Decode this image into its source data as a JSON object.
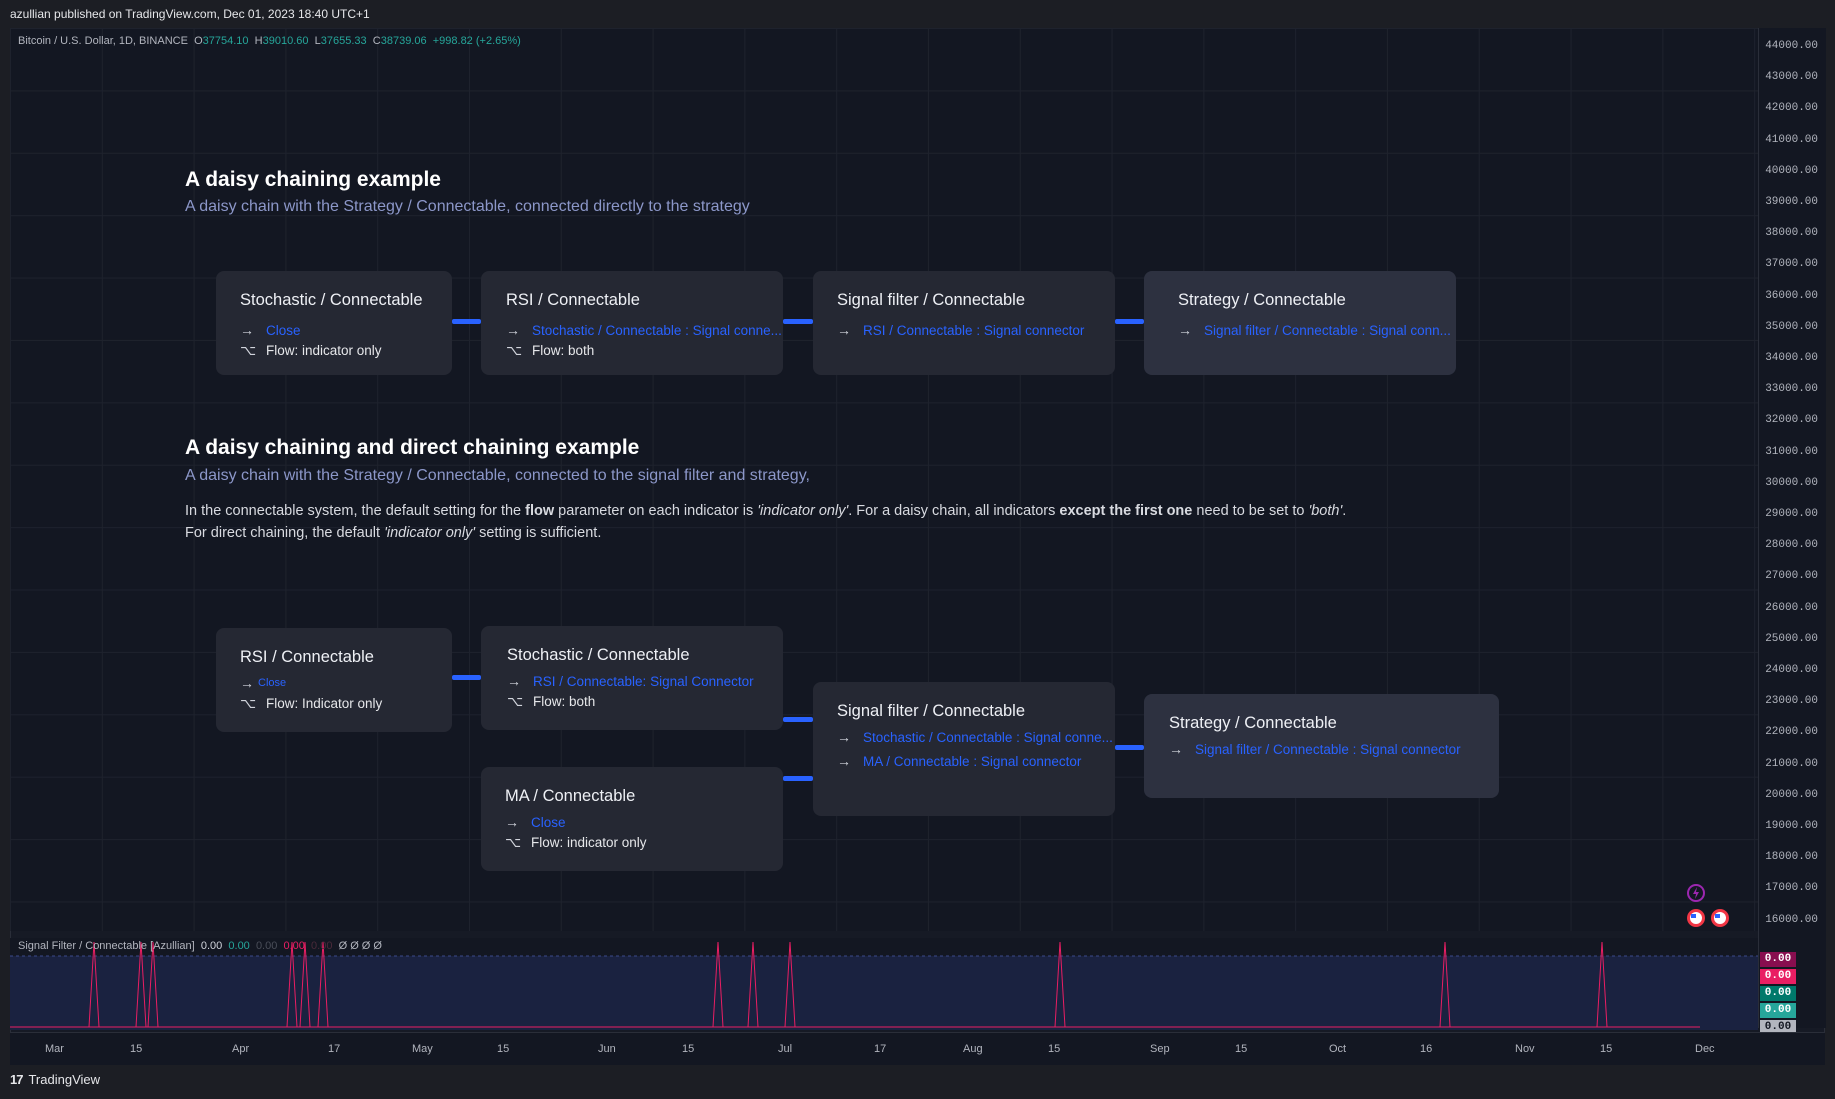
{
  "header": {
    "published_text": "azullian published on TradingView.com, Dec 01, 2023 18:40 UTC+1"
  },
  "legend": {
    "symbol": "Bitcoin / U.S. Dollar, 1D, BINANCE",
    "open_label": "O",
    "open": "37754.10",
    "high_label": "H",
    "high": "39010.60",
    "low_label": "L",
    "low": "37655.33",
    "close_label": "C",
    "close": "38739.06",
    "change": "+998.82 (+2.65%)"
  },
  "price_scale": [
    "44000.00",
    "43000.00",
    "42000.00",
    "41000.00",
    "40000.00",
    "39000.00",
    "38000.00",
    "37000.00",
    "36000.00",
    "35000.00",
    "34000.00",
    "33000.00",
    "32000.00",
    "31000.00",
    "30000.00",
    "29000.00",
    "28000.00",
    "27000.00",
    "26000.00",
    "25000.00",
    "24000.00",
    "23000.00",
    "22000.00",
    "21000.00",
    "20000.00",
    "19000.00",
    "18000.00",
    "17000.00",
    "16000.00"
  ],
  "section1": {
    "title": "A daisy chaining example",
    "subtitle": "A daisy chain with the Strategy / Connectable,  connected directly to the strategy",
    "cards": [
      {
        "title": "Stochastic / Connectable",
        "link": "Close",
        "flow": "Flow: indicator only"
      },
      {
        "title": "RSI / Connectable",
        "link": "Stochastic / Connectable : Signal conne...",
        "flow": "Flow: both"
      },
      {
        "title": "Signal filter / Connectable",
        "link": "RSI / Connectable : Signal connector"
      },
      {
        "title": "Strategy / Connectable",
        "link": "Signal filter / Connectable : Signal conn..."
      }
    ]
  },
  "section2": {
    "title": "A daisy chaining and direct chaining example",
    "subtitle": "A daisy chain with the Strategy / Connectable,  connected to the signal filter and strategy,",
    "para1_a": "In the connectable system, the default setting for the ",
    "para1_b": "flow",
    "para1_c": " parameter on each indicator is ",
    "para1_d": "'indicator only'",
    "para1_e": ". For a daisy chain, all indicators ",
    "para1_f": "except the first one",
    "para1_g": " need to be set to ",
    "para1_h": "'both'",
    "para1_i": ".",
    "para2_a": "For direct chaining, the default ",
    "para2_b": "'indicator only'",
    "para2_c": " setting is sufficient.",
    "cards": {
      "rsi": {
        "title": "RSI / Connectable",
        "link": "Close",
        "flow": "Flow: Indicator only"
      },
      "stoch": {
        "title": "Stochastic / Connectable",
        "link": "RSI / Connectable: Signal Connector",
        "flow": "Flow: both"
      },
      "ma": {
        "title": "MA / Connectable",
        "link": "Close",
        "flow": "Flow: indicator only"
      },
      "filter": {
        "title": "Signal filter / Connectable",
        "link1": "Stochastic / Connectable : Signal conne...",
        "link2": "MA / Connectable : Signal connector"
      },
      "strategy": {
        "title": "Strategy / Connectable",
        "link": "Signal filter / Connectable : Signal connector"
      }
    }
  },
  "arrow_glyph": "→",
  "flow_glyph": "⌥",
  "indicator": {
    "name": "Signal Filter / Connectable [Azullian]",
    "v1": "0.00",
    "v2": "0.00",
    "v3": "0.00",
    "v4": "0.00",
    "v5": "0.00",
    "empties": "Ø  Ø  Ø  Ø",
    "badges": [
      {
        "value": "0.00",
        "color": "#880e4f"
      },
      {
        "value": "0.00",
        "color": "#e91e63"
      },
      {
        "value": "0.00",
        "color": "#00796b"
      },
      {
        "value": "0.00",
        "color": "#26a69a"
      },
      {
        "value": "0.00",
        "color": "#b2b5be"
      }
    ]
  },
  "time_axis": [
    "Mar",
    "15",
    "Apr",
    "17",
    "May",
    "15",
    "Jun",
    "15",
    "Jul",
    "17",
    "Aug",
    "15",
    "Sep",
    "15",
    "Oct",
    "16",
    "Nov",
    "15",
    "Dec"
  ],
  "footer": {
    "logo": "17",
    "brand": "TradingView"
  },
  "colors": {
    "link": "#2962ff",
    "connector": "#2962ff",
    "spike": "#e91e63"
  }
}
